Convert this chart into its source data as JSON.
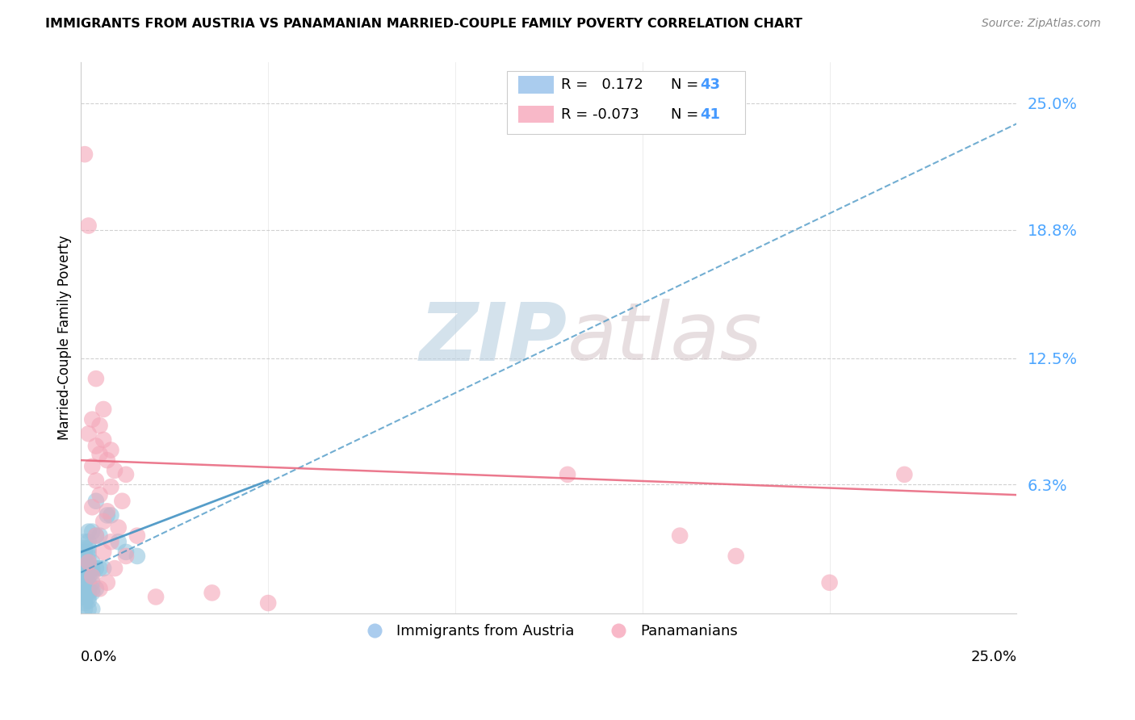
{
  "title": "IMMIGRANTS FROM AUSTRIA VS PANAMANIAN MARRIED-COUPLE FAMILY POVERTY CORRELATION CHART",
  "source": "Source: ZipAtlas.com",
  "ylabel": "Married-Couple Family Poverty",
  "ytick_labels": [
    "25.0%",
    "18.8%",
    "12.5%",
    "6.3%"
  ],
  "ytick_values": [
    0.25,
    0.188,
    0.125,
    0.063
  ],
  "xlim": [
    0.0,
    0.25
  ],
  "ylim": [
    0.0,
    0.27
  ],
  "blue_color": "#92c5de",
  "pink_color": "#f4a6b8",
  "blue_line_color": "#4393c3",
  "pink_line_color": "#e8627a",
  "blue_scatter": [
    [
      0.001,
      0.005
    ],
    [
      0.002,
      0.006
    ],
    [
      0.001,
      0.008
    ],
    [
      0.002,
      0.008
    ],
    [
      0.001,
      0.01
    ],
    [
      0.002,
      0.01
    ],
    [
      0.003,
      0.01
    ],
    [
      0.001,
      0.012
    ],
    [
      0.002,
      0.012
    ],
    [
      0.003,
      0.012
    ],
    [
      0.004,
      0.012
    ],
    [
      0.001,
      0.015
    ],
    [
      0.002,
      0.015
    ],
    [
      0.003,
      0.015
    ],
    [
      0.001,
      0.018
    ],
    [
      0.002,
      0.018
    ],
    [
      0.001,
      0.02
    ],
    [
      0.002,
      0.02
    ],
    [
      0.003,
      0.02
    ],
    [
      0.001,
      0.022
    ],
    [
      0.002,
      0.022
    ],
    [
      0.003,
      0.022
    ],
    [
      0.004,
      0.022
    ],
    [
      0.005,
      0.022
    ],
    [
      0.006,
      0.022
    ],
    [
      0.001,
      0.025
    ],
    [
      0.002,
      0.025
    ],
    [
      0.003,
      0.025
    ],
    [
      0.001,
      0.028
    ],
    [
      0.002,
      0.028
    ],
    [
      0.001,
      0.03
    ],
    [
      0.002,
      0.03
    ],
    [
      0.001,
      0.032
    ],
    [
      0.002,
      0.032
    ],
    [
      0.001,
      0.035
    ],
    [
      0.002,
      0.035
    ],
    [
      0.001,
      0.002
    ],
    [
      0.002,
      0.002
    ],
    [
      0.003,
      0.002
    ],
    [
      0.002,
      0.04
    ],
    [
      0.003,
      0.04
    ],
    [
      0.004,
      0.038
    ],
    [
      0.005,
      0.038
    ],
    [
      0.01,
      0.035
    ],
    [
      0.012,
      0.03
    ],
    [
      0.015,
      0.028
    ],
    [
      0.007,
      0.048
    ],
    [
      0.008,
      0.048
    ],
    [
      0.004,
      0.055
    ]
  ],
  "pink_scatter": [
    [
      0.001,
      0.225
    ],
    [
      0.002,
      0.19
    ],
    [
      0.004,
      0.115
    ],
    [
      0.006,
      0.1
    ],
    [
      0.003,
      0.095
    ],
    [
      0.005,
      0.092
    ],
    [
      0.002,
      0.088
    ],
    [
      0.006,
      0.085
    ],
    [
      0.004,
      0.082
    ],
    [
      0.008,
      0.08
    ],
    [
      0.005,
      0.078
    ],
    [
      0.007,
      0.075
    ],
    [
      0.003,
      0.072
    ],
    [
      0.009,
      0.07
    ],
    [
      0.012,
      0.068
    ],
    [
      0.004,
      0.065
    ],
    [
      0.008,
      0.062
    ],
    [
      0.005,
      0.058
    ],
    [
      0.011,
      0.055
    ],
    [
      0.003,
      0.052
    ],
    [
      0.007,
      0.05
    ],
    [
      0.006,
      0.045
    ],
    [
      0.01,
      0.042
    ],
    [
      0.004,
      0.038
    ],
    [
      0.015,
      0.038
    ],
    [
      0.008,
      0.035
    ],
    [
      0.006,
      0.03
    ],
    [
      0.012,
      0.028
    ],
    [
      0.002,
      0.025
    ],
    [
      0.009,
      0.022
    ],
    [
      0.003,
      0.018
    ],
    [
      0.007,
      0.015
    ],
    [
      0.005,
      0.012
    ],
    [
      0.02,
      0.008
    ],
    [
      0.035,
      0.01
    ],
    [
      0.05,
      0.005
    ],
    [
      0.13,
      0.068
    ],
    [
      0.16,
      0.038
    ],
    [
      0.175,
      0.028
    ],
    [
      0.2,
      0.015
    ],
    [
      0.22,
      0.068
    ]
  ],
  "blue_dashed_trend": [
    0.0,
    0.25,
    0.02,
    0.24
  ],
  "blue_solid_trend": [
    0.0,
    0.05,
    0.03,
    0.065
  ],
  "pink_solid_trend": [
    0.0,
    0.25,
    0.075,
    0.058
  ],
  "grid_color": "#cccccc",
  "bg_color": "#ffffff",
  "ytick_color": "#4da6ff",
  "xtick_color": "#000000"
}
